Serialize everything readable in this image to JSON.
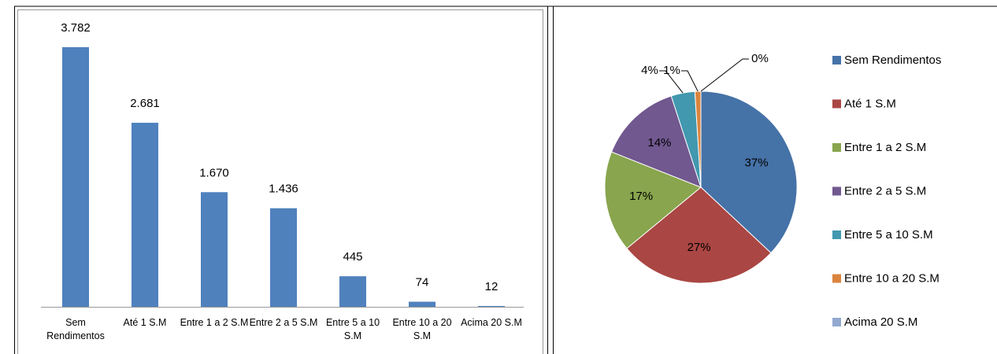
{
  "chart_data": [
    {
      "type": "bar",
      "categories": [
        "Sem Rendimentos",
        "Até 1 S.M",
        "Entre 1 a 2 S.M",
        "Entre 2 a 5 S.M",
        "Entre 5 a 10 S.M",
        "Entre 10 a 20 S.M",
        "Acima 20 S.M"
      ],
      "values": [
        3782,
        2681,
        1670,
        1436,
        445,
        74,
        12
      ],
      "value_labels": [
        "3.782",
        "2.681",
        "1.670",
        "1.436",
        "445",
        "74",
        "12"
      ],
      "color": "#4f81bd"
    },
    {
      "type": "pie",
      "categories": [
        "Sem Rendimentos",
        "Até 1 S.M",
        "Entre 1 a 2 S.M",
        "Entre 2 a 5 S.M",
        "Entre 5 a 10 S.M",
        "Entre 10 a 20 S.M",
        "Acima 20 S.M"
      ],
      "values": [
        37,
        27,
        17,
        14,
        4,
        1,
        0
      ],
      "value_labels": [
        "37%",
        "27%",
        "17%",
        "14%",
        "4%",
        "1%",
        "0%"
      ],
      "colors": [
        "#4572a7",
        "#aa4643",
        "#89a54e",
        "#71588f",
        "#4198af",
        "#db843d",
        "#93a9cf"
      ],
      "legend": "right"
    }
  ]
}
